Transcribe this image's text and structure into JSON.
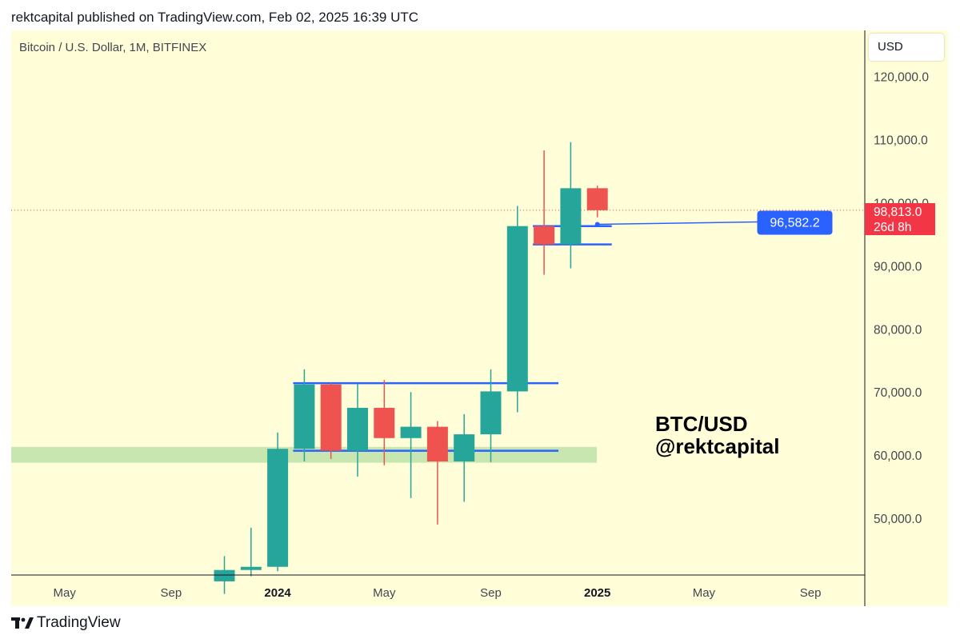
{
  "publish_line": "rektcapital published on TradingView.com, Feb 02, 2025 16:39 UTC",
  "symbol_line": "Bitcoin / U.S. Dollar, 1M, BITFINEX",
  "currency": "USD",
  "watermark": {
    "line1": "BTC/USD",
    "line2": "@rektcapital"
  },
  "brand": "TradingView",
  "colors": {
    "background": "#fffed8",
    "up": "#26a69a",
    "down": "#ef5350",
    "level_line": "#2962ff",
    "zone": "#c8e6b0",
    "current_price": "#f23645"
  },
  "chart_data": {
    "type": "candlestick",
    "title": "",
    "interval": "1M",
    "y_range": [
      40000,
      128000
    ],
    "x_axis_ticks": [
      {
        "label": "May",
        "date": "2023-05",
        "bold": false
      },
      {
        "label": "Sep",
        "date": "2023-09",
        "bold": false
      },
      {
        "label": "2024",
        "date": "2024-01",
        "bold": true
      },
      {
        "label": "May",
        "date": "2024-05",
        "bold": false
      },
      {
        "label": "Sep",
        "date": "2024-09",
        "bold": false
      },
      {
        "label": "2025",
        "date": "2025-01",
        "bold": true
      },
      {
        "label": "May",
        "date": "2025-05",
        "bold": false
      },
      {
        "label": "Sep",
        "date": "2025-09",
        "bold": false
      }
    ],
    "y_axis_ticks": [
      "120,000.0",
      "110,000.0",
      "100,000.0",
      "90,000.0",
      "80,000.0",
      "70,000.0",
      "60,000.0",
      "50,000.0"
    ],
    "y_axis_values": [
      120000,
      110000,
      100000,
      90000,
      80000,
      70000,
      60000,
      50000
    ],
    "candles": [
      {
        "date": "2023-11",
        "open": 40000,
        "high": 44000,
        "low": 38000,
        "close": 41800
      },
      {
        "date": "2023-12",
        "open": 41800,
        "high": 48500,
        "low": 40800,
        "close": 42300
      },
      {
        "date": "2024-01",
        "open": 42300,
        "high": 63600,
        "low": 41600,
        "close": 61000
      },
      {
        "date": "2024-02",
        "open": 61000,
        "high": 73600,
        "low": 59000,
        "close": 71200
      },
      {
        "date": "2024-03",
        "open": 71200,
        "high": 71400,
        "low": 59400,
        "close": 60700
      },
      {
        "date": "2024-04",
        "open": 60700,
        "high": 71300,
        "low": 56600,
        "close": 67500
      },
      {
        "date": "2024-05",
        "open": 67500,
        "high": 71900,
        "low": 58400,
        "close": 62700
      },
      {
        "date": "2024-06",
        "open": 62700,
        "high": 70000,
        "low": 53200,
        "close": 64500
      },
      {
        "date": "2024-07",
        "open": 64500,
        "high": 65400,
        "low": 49000,
        "close": 59000
      },
      {
        "date": "2024-08",
        "open": 59000,
        "high": 66500,
        "low": 52600,
        "close": 63300
      },
      {
        "date": "2024-09",
        "open": 63300,
        "high": 73600,
        "low": 58900,
        "close": 70100
      },
      {
        "date": "2024-10",
        "open": 70100,
        "high": 99500,
        "low": 66800,
        "close": 96300
      },
      {
        "date": "2024-11",
        "open": 96300,
        "high": 108300,
        "low": 88600,
        "close": 93400
      },
      {
        "date": "2024-12",
        "open": 93400,
        "high": 109600,
        "low": 89600,
        "close": 102300
      },
      {
        "date": "2025-01",
        "open": 102300,
        "high": 102700,
        "low": 97700,
        "close": 98813
      }
    ],
    "horizontal_levels": [
      {
        "price": 71400,
        "from": "2024-02",
        "to": "2024-11"
      },
      {
        "price": 60700,
        "from": "2024-02",
        "to": "2024-11"
      },
      {
        "price": 96300,
        "from": "2024-11",
        "to": "2025-01"
      },
      {
        "price": 93400,
        "from": "2024-11",
        "to": "2025-01"
      }
    ],
    "support_zone": {
      "from": 58800,
      "to": 61300
    },
    "ray": {
      "price": 96582.2,
      "from": "2025-01",
      "to": "2025-07",
      "label": "96,582.2"
    },
    "current_price": {
      "value": 98813,
      "label": "98,813.0",
      "countdown": "26d 8h"
    }
  }
}
